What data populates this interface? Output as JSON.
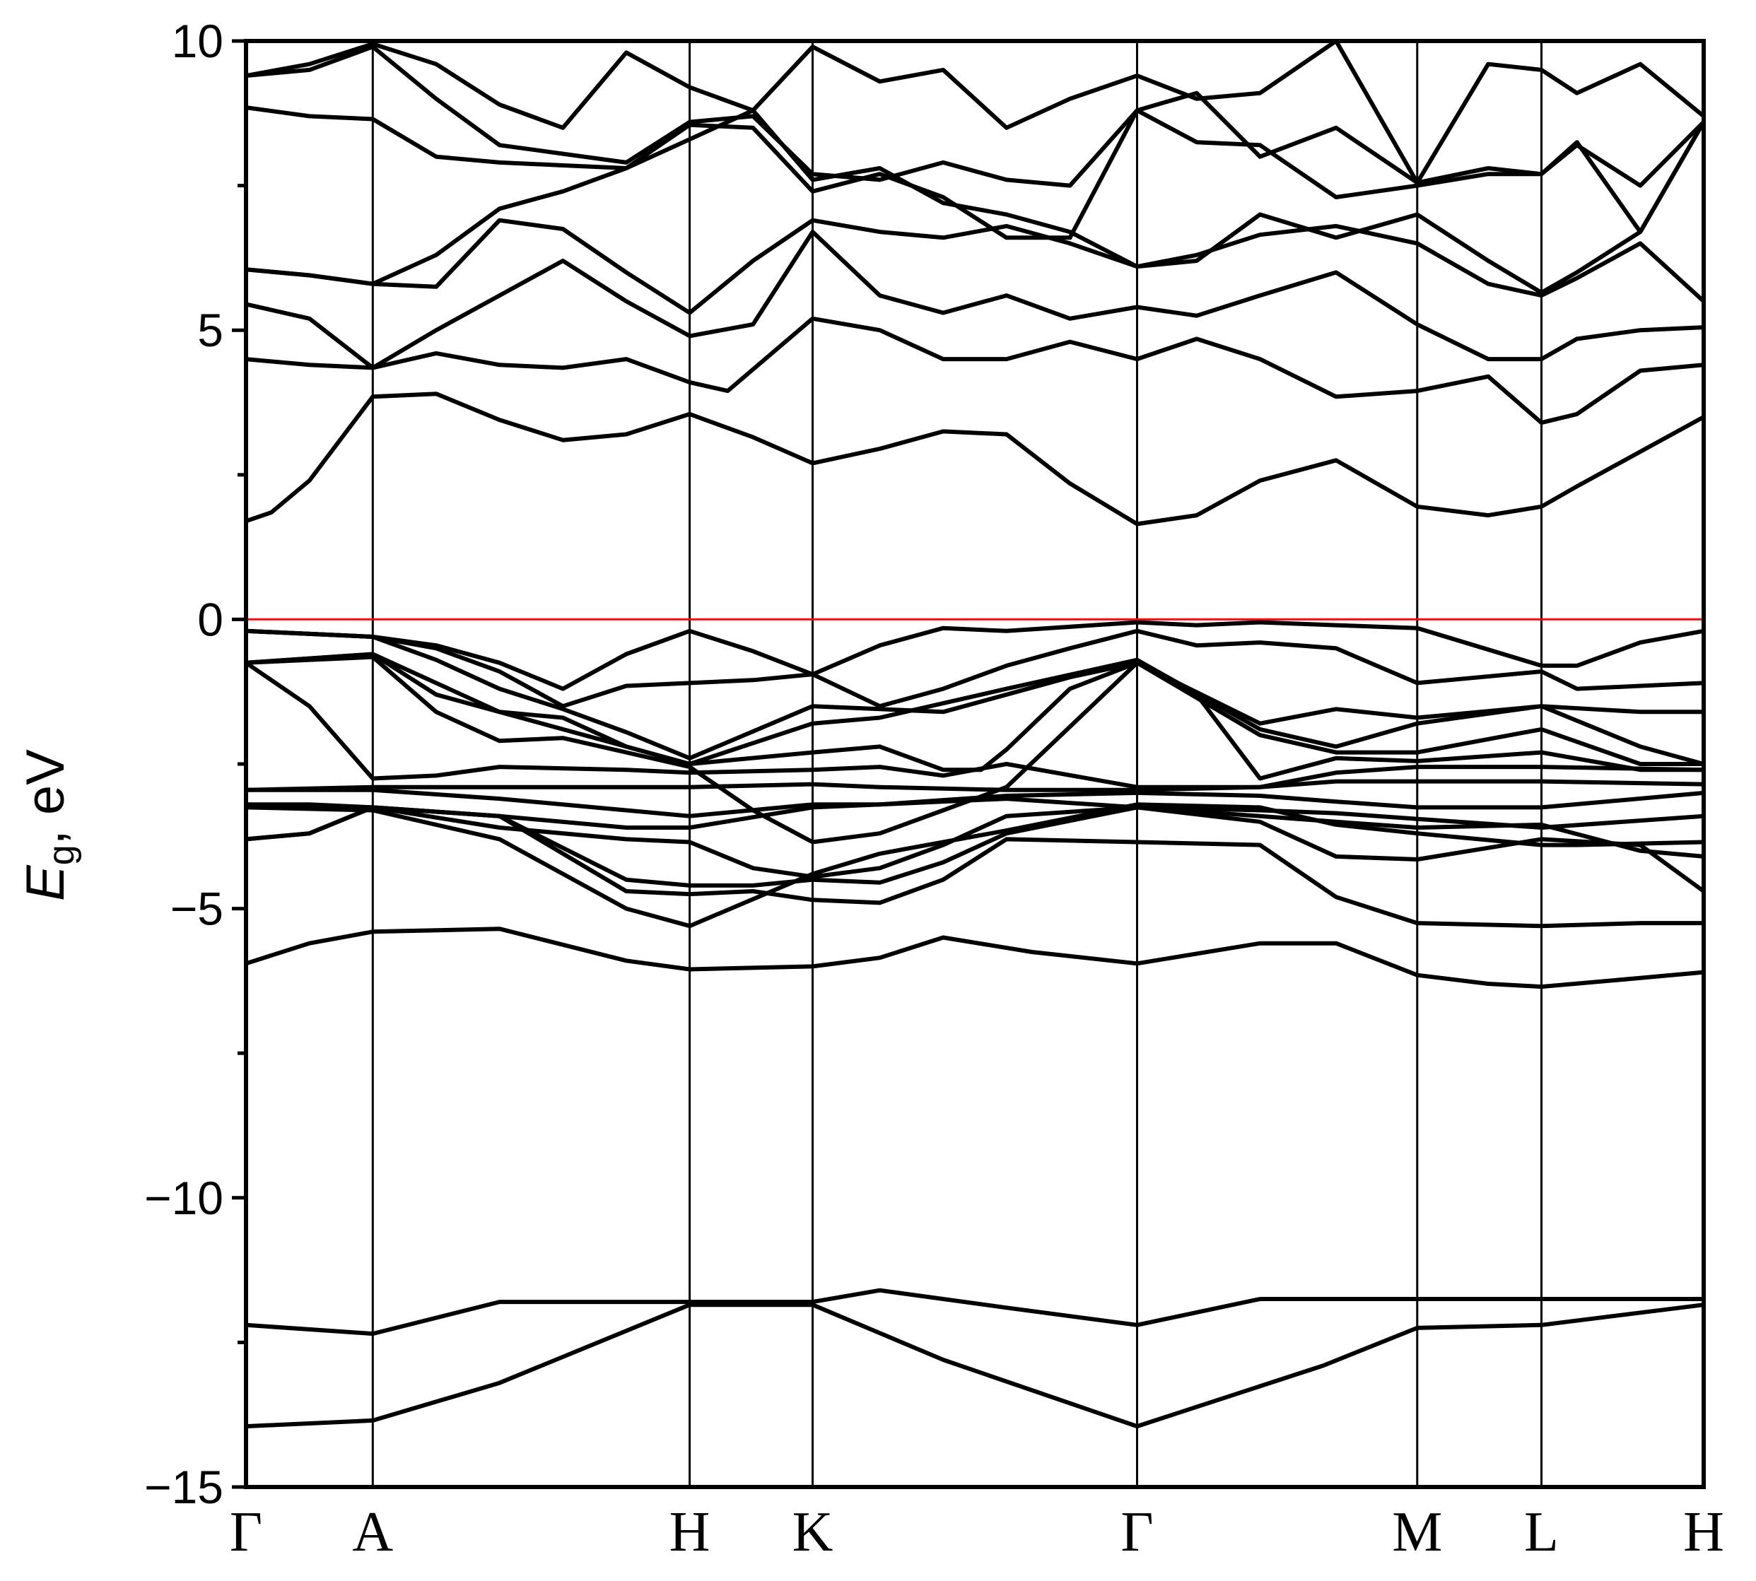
{
  "chart_data": {
    "type": "line",
    "title": "",
    "xlabel": "",
    "ylabel": {
      "symbol": "E",
      "subscript": "g",
      "unit_text": ", eV"
    },
    "ylim": [
      -15,
      10
    ],
    "yticks": [
      {
        "value": 10,
        "label": "10"
      },
      {
        "value": 5,
        "label": "5"
      },
      {
        "value": 0,
        "label": "0"
      },
      {
        "value": -5,
        "label": "−5"
      },
      {
        "value": -10,
        "label": "−10"
      },
      {
        "value": -15,
        "label": "−15"
      }
    ],
    "yminor": [
      7.5,
      2.5,
      -2.5,
      -7.5,
      -12.5
    ],
    "xlim": [
      0,
      11.5
    ],
    "kpoints": [
      {
        "label": "Γ",
        "x": 0
      },
      {
        "label": "A",
        "x": 1
      },
      {
        "label": "H",
        "x": 3.5
      },
      {
        "label": "K",
        "x": 4.47
      },
      {
        "label": "Γ",
        "x": 7.03
      },
      {
        "label": "M",
        "x": 9.24
      },
      {
        "label": "L",
        "x": 10.22
      },
      {
        "label": "H",
        "x": 11.5
      }
    ],
    "fermi_level": 0,
    "colors": {
      "bands": "#000000",
      "fermi": "#ff0000",
      "axes": "#000000"
    },
    "series": [
      {
        "x": [
          0,
          1,
          2,
          3.5,
          4.47,
          5.5,
          7.03,
          8.5,
          9.24,
          10.22,
          11.5
        ],
        "values": [
          -13.95,
          -13.85,
          -13.2,
          -11.85,
          -11.85,
          -12.8,
          -13.95,
          -12.9,
          -12.25,
          -12.2,
          -11.85
        ]
      },
      {
        "x": [
          0,
          1,
          2,
          3.5,
          4.47,
          5,
          6,
          7.03,
          8,
          9.24,
          10.22,
          11.5
        ],
        "values": [
          -12.2,
          -12.35,
          -11.8,
          -11.8,
          -11.8,
          -11.6,
          -11.9,
          -12.2,
          -11.75,
          -11.75,
          -11.75,
          -11.75
        ]
      },
      {
        "x": [
          0,
          0.5,
          1,
          2,
          3,
          3.5,
          4.47,
          5,
          5.5,
          6.2,
          7.03,
          8,
          8.6,
          9.24,
          9.8,
          10.22,
          11,
          11.5
        ],
        "values": [
          -5.95,
          -5.6,
          -5.4,
          -5.35,
          -5.9,
          -6.05,
          -6.0,
          -5.85,
          -5.5,
          -5.75,
          -5.95,
          -5.6,
          -5.6,
          -6.15,
          -6.3,
          -6.35,
          -6.2,
          -6.1
        ]
      },
      {
        "x": [
          0,
          0.5,
          1,
          2,
          3,
          3.5,
          4,
          4.47,
          5,
          5.5,
          6,
          7.03,
          8,
          8.6,
          9.24,
          10.22,
          11,
          11.5
        ],
        "values": [
          -3.8,
          -3.7,
          -3.25,
          -3.4,
          -4.7,
          -4.75,
          -4.7,
          -4.85,
          -4.9,
          -4.5,
          -3.8,
          -3.85,
          -3.9,
          -4.8,
          -5.25,
          -5.3,
          -5.25,
          -5.25
        ]
      },
      {
        "x": [
          0,
          0.5,
          1,
          2,
          3,
          3.5,
          4,
          4.47,
          5,
          5.5,
          6,
          7.03,
          8,
          8.6,
          9.24,
          10.22,
          11,
          11.5
        ],
        "values": [
          -3.8,
          -3.7,
          -3.25,
          -3.4,
          -4.5,
          -4.6,
          -4.6,
          -4.5,
          -4.55,
          -4.2,
          -3.7,
          -3.25,
          -3.5,
          -4.1,
          -4.15,
          -3.8,
          -3.9,
          -4.7
        ]
      },
      {
        "x": [
          0,
          0.5,
          1,
          2,
          3,
          3.5,
          4,
          4.47,
          5,
          5.5,
          6,
          7.03,
          8,
          8.6,
          9.24,
          10.22,
          11,
          11.5
        ],
        "values": [
          -3.2,
          -3.2,
          -3.25,
          -3.6,
          -3.8,
          -3.85,
          -4.3,
          -4.45,
          -4.3,
          -3.9,
          -3.4,
          -3.25,
          -3.4,
          -3.5,
          -3.6,
          -3.55,
          -4.0,
          -4.1
        ]
      },
      {
        "x": [
          0,
          1,
          2,
          3,
          3.5,
          4.47,
          5,
          6,
          7.03,
          8,
          8.6,
          9.24,
          10.22,
          10.5,
          11.5
        ],
        "values": [
          -3.25,
          -3.3,
          -3.8,
          -5.0,
          -5.3,
          -4.4,
          -4.05,
          -3.65,
          -3.2,
          -3.25,
          -3.55,
          -3.7,
          -3.9,
          -3.9,
          -3.85
        ]
      },
      {
        "x": [
          0,
          1,
          2,
          3,
          3.5,
          4.47,
          5,
          6,
          7.03,
          8,
          8.6,
          9.24,
          10.22,
          11.5
        ],
        "values": [
          -3.2,
          -3.25,
          -3.4,
          -3.6,
          -3.6,
          -3.25,
          -3.2,
          -3.1,
          -3.25,
          -3.3,
          -3.35,
          -3.45,
          -3.6,
          -3.4
        ]
      },
      {
        "x": [
          0,
          1,
          2,
          3,
          3.5,
          4.47,
          5,
          6,
          7.03,
          8,
          8.6,
          9.24,
          10.22,
          11.5
        ],
        "values": [
          -2.95,
          -2.95,
          -3.1,
          -3.3,
          -3.4,
          -3.2,
          -3.2,
          -3.05,
          -3.0,
          -3.05,
          -3.15,
          -3.25,
          -3.25,
          -3.0
        ]
      },
      {
        "x": [
          0,
          1,
          2,
          3.5,
          4.47,
          5,
          6,
          7.03,
          8,
          8.6,
          9.24,
          10.22,
          11.5
        ],
        "values": [
          -2.95,
          -2.9,
          -2.9,
          -2.9,
          -2.85,
          -2.9,
          -2.95,
          -2.95,
          -2.9,
          -2.8,
          -2.8,
          -2.8,
          -2.85
        ]
      },
      {
        "x": [
          0,
          0.5,
          1,
          1.5,
          2,
          3,
          3.5,
          4.47,
          5,
          5.5,
          6,
          7.03,
          8,
          8.6,
          9.24,
          10.22,
          11.5
        ],
        "values": [
          -0.75,
          -1.5,
          -2.75,
          -2.7,
          -2.55,
          -2.6,
          -2.65,
          -2.6,
          -2.55,
          -2.7,
          -2.5,
          -2.9,
          -2.9,
          -2.65,
          -2.55,
          -2.55,
          -2.6
        ]
      },
      {
        "x": [
          0,
          1,
          2,
          3.5,
          4.47,
          5,
          5.5,
          5.8,
          6,
          6.5,
          7.03,
          7.5,
          8,
          8.6,
          9.24,
          10.22,
          11,
          11.5
        ],
        "values": [
          -0.75,
          -0.6,
          -1.6,
          -2.5,
          -2.3,
          -2.2,
          -2.6,
          -2.6,
          -2.25,
          -1.2,
          -0.75,
          -1.3,
          -2.75,
          -2.4,
          -2.45,
          -2.3,
          -2.6,
          -2.6
        ]
      },
      {
        "x": [
          0,
          1,
          1.5,
          2,
          2.5,
          3,
          3.5,
          4,
          4.47,
          5,
          5.5,
          6,
          7.03,
          8,
          8.6,
          9.24,
          10.22,
          11,
          11.5
        ],
        "values": [
          -0.75,
          -0.65,
          -1.6,
          -2.1,
          -2.05,
          -2.3,
          -2.55,
          -3.3,
          -3.85,
          -3.7,
          -3.3,
          -2.9,
          -0.75,
          -2.0,
          -2.3,
          -2.3,
          -1.9,
          -2.5,
          -2.5
        ]
      },
      {
        "x": [
          0,
          1,
          1.5,
          2,
          2.5,
          3,
          3.5,
          4.47,
          5,
          5.5,
          6,
          7.03,
          8,
          8.6,
          9.24,
          10.22,
          11,
          11.5
        ],
        "values": [
          -0.75,
          -0.6,
          -1.3,
          -1.6,
          -1.7,
          -2.2,
          -2.5,
          -1.8,
          -1.7,
          -1.45,
          -1.2,
          -0.7,
          -1.9,
          -2.2,
          -1.8,
          -1.5,
          -2.2,
          -2.5
        ]
      },
      {
        "x": [
          0,
          1,
          1.5,
          2,
          2.5,
          3,
          3.5,
          4.47,
          5,
          5.5,
          6,
          6.5,
          7.03,
          8,
          8.6,
          9.24,
          10.22,
          11,
          11.5
        ],
        "values": [
          -0.2,
          -0.3,
          -0.7,
          -1.2,
          -1.55,
          -1.95,
          -2.4,
          -1.5,
          -1.55,
          -1.6,
          -1.3,
          -1.0,
          -0.75,
          -1.8,
          -1.55,
          -1.7,
          -1.5,
          -1.6,
          -1.6
        ]
      },
      {
        "x": [
          0,
          1,
          1.5,
          2,
          2.5,
          3,
          3.5,
          4,
          4.47,
          5,
          5.5,
          6,
          6.5,
          7.03,
          7.5,
          8,
          8.6,
          9.24,
          10.22,
          10.5,
          11,
          11.5
        ],
        "values": [
          -0.2,
          -0.3,
          -0.5,
          -0.9,
          -1.5,
          -1.15,
          -1.1,
          -1.05,
          -0.95,
          -1.5,
          -1.2,
          -0.8,
          -0.5,
          -0.2,
          -0.45,
          -0.4,
          -0.5,
          -1.1,
          -0.9,
          -1.2,
          -1.15,
          -1.1
        ]
      },
      {
        "x": [
          0,
          1,
          1.5,
          2,
          2.5,
          3,
          3.5,
          4,
          4.47,
          5,
          5.5,
          6,
          7.03,
          7.5,
          8,
          8.6,
          9.24,
          10.22,
          10.5,
          11,
          11.5
        ],
        "values": [
          -0.2,
          -0.3,
          -0.45,
          -0.75,
          -1.2,
          -0.6,
          -0.2,
          -0.55,
          -0.95,
          -0.45,
          -0.15,
          -0.2,
          -0.05,
          -0.1,
          -0.05,
          -0.1,
          -0.15,
          -0.8,
          -0.8,
          -0.4,
          -0.2
        ]
      },
      {
        "x": [
          0,
          0.2,
          0.5,
          1,
          1.5,
          2,
          2.5,
          3,
          3.5,
          4,
          4.47,
          5,
          5.5,
          6,
          6.5,
          7.03,
          7.5,
          8,
          8.6,
          9.24,
          9.8,
          10.22,
          10.5,
          11,
          11.5
        ],
        "values": [
          1.7,
          1.85,
          2.4,
          3.85,
          3.9,
          3.45,
          3.1,
          3.2,
          3.55,
          3.15,
          2.7,
          2.95,
          3.25,
          3.2,
          2.35,
          1.65,
          1.8,
          2.4,
          2.75,
          1.95,
          1.8,
          1.95,
          2.3,
          2.9,
          3.5
        ]
      },
      {
        "x": [
          0,
          0.5,
          1,
          1.5,
          2,
          2.5,
          3,
          3.5,
          3.8,
          4.47,
          5,
          5.5,
          6,
          6.5,
          7.03,
          7.5,
          8,
          8.6,
          9.24,
          9.8,
          10.22,
          10.5,
          11,
          11.5
        ],
        "values": [
          4.5,
          4.4,
          4.35,
          4.6,
          4.4,
          4.35,
          4.5,
          4.1,
          3.95,
          5.2,
          5.0,
          4.5,
          4.5,
          4.8,
          4.5,
          4.85,
          4.5,
          3.85,
          3.95,
          4.2,
          3.4,
          3.55,
          4.3,
          4.4
        ]
      },
      {
        "x": [
          0,
          0.5,
          1,
          1.5,
          2,
          2.5,
          3,
          3.5,
          4,
          4.47,
          5,
          5.5,
          6,
          6.5,
          7.03,
          7.5,
          8,
          8.6,
          9.24,
          9.8,
          10.22,
          10.5,
          11,
          11.5
        ],
        "values": [
          5.45,
          5.2,
          4.35,
          5.0,
          5.6,
          6.2,
          5.5,
          4.9,
          5.1,
          6.7,
          5.6,
          5.3,
          5.6,
          5.2,
          5.4,
          5.25,
          5.6,
          6.0,
          5.1,
          4.5,
          4.5,
          4.85,
          5.0,
          5.05
        ]
      },
      {
        "x": [
          0,
          0.5,
          1,
          1.5,
          2,
          2.5,
          3,
          3.5,
          4,
          4.47,
          5,
          5.5,
          6,
          6.5,
          7.03,
          7.5,
          8,
          8.6,
          9.24,
          9.8,
          10.22,
          10.5,
          11,
          11.5
        ],
        "values": [
          6.05,
          5.95,
          5.8,
          5.75,
          6.9,
          6.75,
          6.0,
          5.3,
          6.2,
          6.9,
          6.7,
          6.6,
          6.8,
          6.5,
          6.1,
          6.3,
          6.65,
          6.8,
          6.5,
          5.8,
          5.6,
          5.9,
          6.5,
          5.5
        ]
      },
      {
        "x": [
          0,
          0.5,
          1,
          1.5,
          2,
          2.5,
          3,
          3.5,
          4,
          4.47,
          5,
          5.5,
          6,
          6.5,
          7.03,
          7.5,
          8,
          8.6,
          9.24,
          9.8,
          10.22,
          10.5,
          11,
          11.5
        ],
        "values": [
          6.05,
          5.95,
          5.8,
          6.3,
          7.1,
          7.4,
          7.8,
          8.3,
          8.8,
          7.6,
          7.8,
          7.2,
          7.0,
          6.7,
          6.1,
          6.2,
          7.0,
          6.6,
          7.0,
          6.2,
          5.65,
          6.0,
          6.7,
          8.6
        ]
      },
      {
        "x": [
          0,
          0.5,
          1,
          1.5,
          2,
          2.5,
          3,
          3.5,
          4,
          4.47,
          5,
          5.5,
          6,
          6.5,
          7.03,
          7.5,
          8,
          8.6,
          9.24,
          9.8,
          10.22,
          10.5,
          11,
          11.5
        ],
        "values": [
          8.85,
          8.7,
          8.65,
          8.0,
          7.9,
          7.85,
          7.8,
          8.55,
          8.5,
          7.4,
          7.7,
          7.3,
          6.6,
          6.6,
          8.8,
          8.25,
          8.2,
          7.3,
          7.5,
          7.7,
          7.7,
          8.2,
          7.5,
          8.6
        ]
      },
      {
        "x": [
          0,
          0.5,
          1,
          1.5,
          2,
          2.5,
          3,
          3.5,
          4,
          4.47,
          5,
          5.5,
          6,
          6.5,
          7.03,
          7.5,
          8,
          8.6,
          9.24,
          9.8,
          10.22,
          10.5,
          11,
          11.5
        ],
        "values": [
          9.4,
          9.5,
          9.9,
          9.0,
          8.2,
          8.05,
          7.9,
          8.6,
          8.7,
          7.7,
          7.6,
          7.9,
          7.6,
          7.5,
          8.8,
          9.1,
          8.0,
          8.5,
          7.55,
          7.8,
          7.7,
          8.25,
          6.7,
          8.6
        ]
      },
      {
        "x": [
          0,
          0.5,
          1,
          1.5,
          2,
          2.5,
          3,
          3.5,
          4,
          4.47,
          5,
          5.5,
          6,
          6.5,
          7.03,
          7.5,
          8,
          8.6,
          9.24,
          9.8,
          10.22,
          10.5,
          11,
          11.5
        ],
        "values": [
          9.4,
          9.6,
          9.95,
          9.6,
          8.9,
          8.5,
          9.8,
          9.2,
          8.8,
          9.9,
          9.3,
          9.5,
          8.5,
          9.0,
          9.4,
          9.0,
          9.1,
          10.0,
          7.55,
          9.6,
          9.5,
          9.1,
          9.6,
          8.7
        ]
      }
    ]
  }
}
